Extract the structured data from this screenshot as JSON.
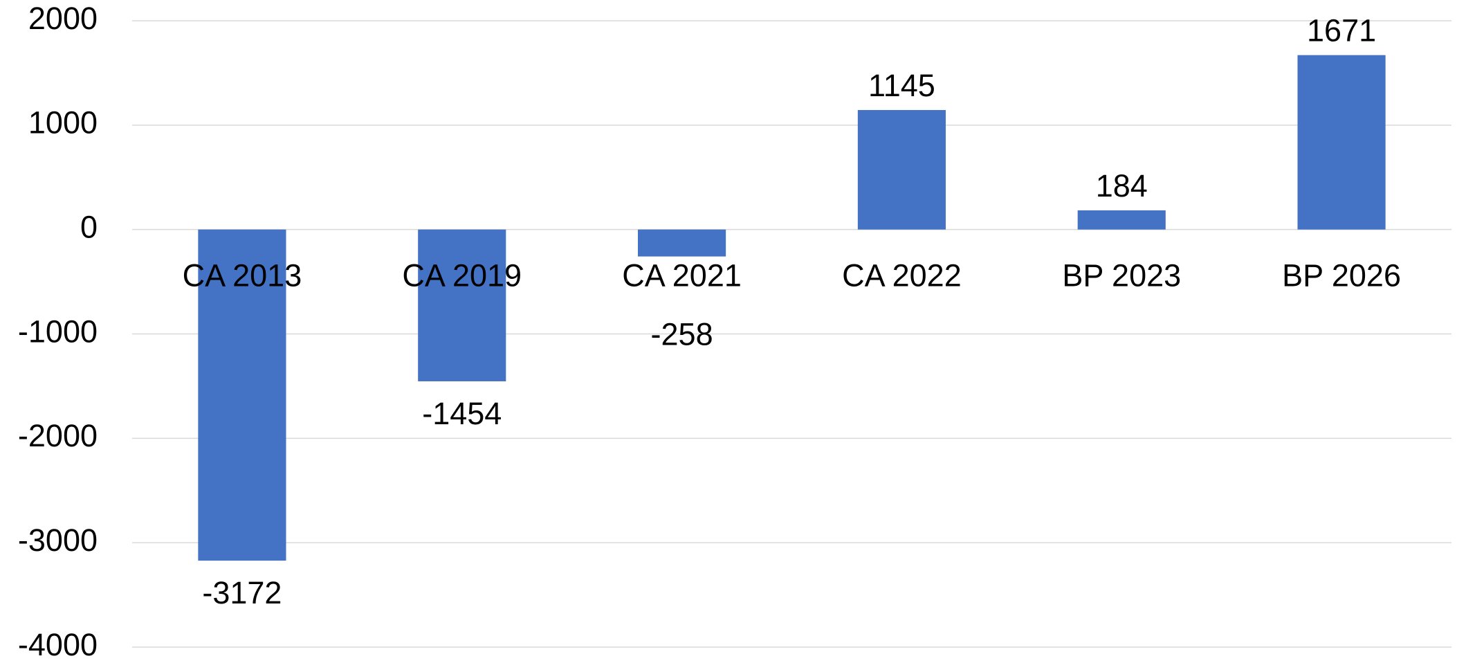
{
  "chart_data": {
    "type": "bar",
    "categories": [
      "CA 2013",
      "CA 2019",
      "CA 2021",
      "CA 2022",
      "BP 2023",
      "BP 2026"
    ],
    "values": [
      -3172,
      -1454,
      -258,
      1145,
      184,
      1671
    ],
    "color": "#4472c4",
    "ylim": [
      -4000,
      2000
    ],
    "yticks": [
      -4000,
      -3000,
      -2000,
      -1000,
      0,
      1000,
      2000
    ],
    "grid": true
  }
}
